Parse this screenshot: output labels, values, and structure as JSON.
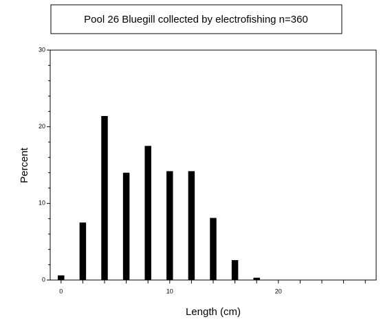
{
  "chart_data": {
    "type": "bar",
    "title": "Pool 26 Bluegill collected by electrofishing n=360",
    "x_label": "Length (cm)",
    "y_label": "Percent",
    "x": [
      0,
      2,
      4,
      6,
      8,
      10,
      12,
      14,
      16,
      18
    ],
    "values": [
      0.6,
      7.5,
      21.4,
      14.0,
      17.5,
      14.2,
      14.2,
      8.1,
      2.6,
      0.3
    ],
    "color": "#000000",
    "xlim": [
      -1,
      29
    ],
    "xticks": [
      0,
      10,
      20
    ],
    "x_minor_ticks": [
      2,
      4,
      6,
      8,
      12,
      14,
      16,
      18,
      22,
      24,
      26,
      28
    ],
    "ylim": [
      0,
      30
    ],
    "yticks": [
      0,
      10,
      20,
      30
    ],
    "y_minor_ticks": [
      2,
      4,
      6,
      8,
      12,
      14,
      16,
      18,
      22,
      24,
      26,
      28
    ]
  }
}
